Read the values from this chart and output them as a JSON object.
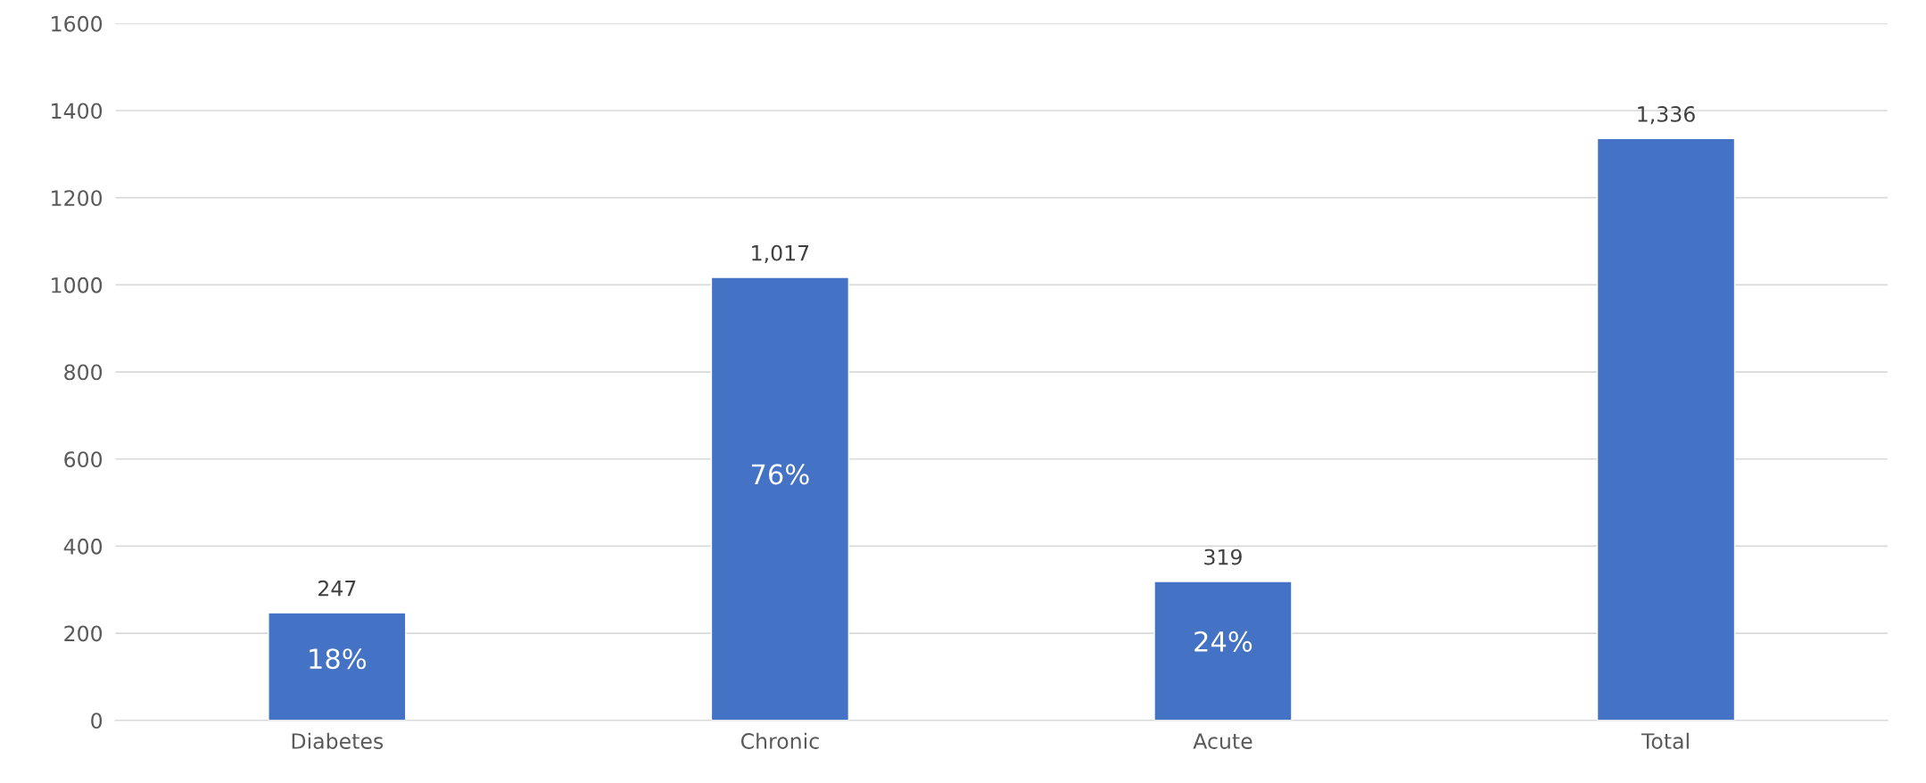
{
  "chart_data": {
    "type": "bar",
    "categories": [
      "Diabetes",
      "Chronic",
      "Acute",
      "Total"
    ],
    "values": [
      247,
      1017,
      319,
      1336
    ],
    "value_labels": [
      "247",
      "1,017",
      "319",
      "1,336"
    ],
    "color": "#4472c4",
    "ylim": [
      0,
      1600
    ],
    "yticks": [
      0,
      200,
      400,
      600,
      800,
      1000,
      1200,
      1400,
      1600
    ],
    "grid": "y",
    "annotations": [
      "18%",
      "76%",
      "24%"
    ]
  }
}
